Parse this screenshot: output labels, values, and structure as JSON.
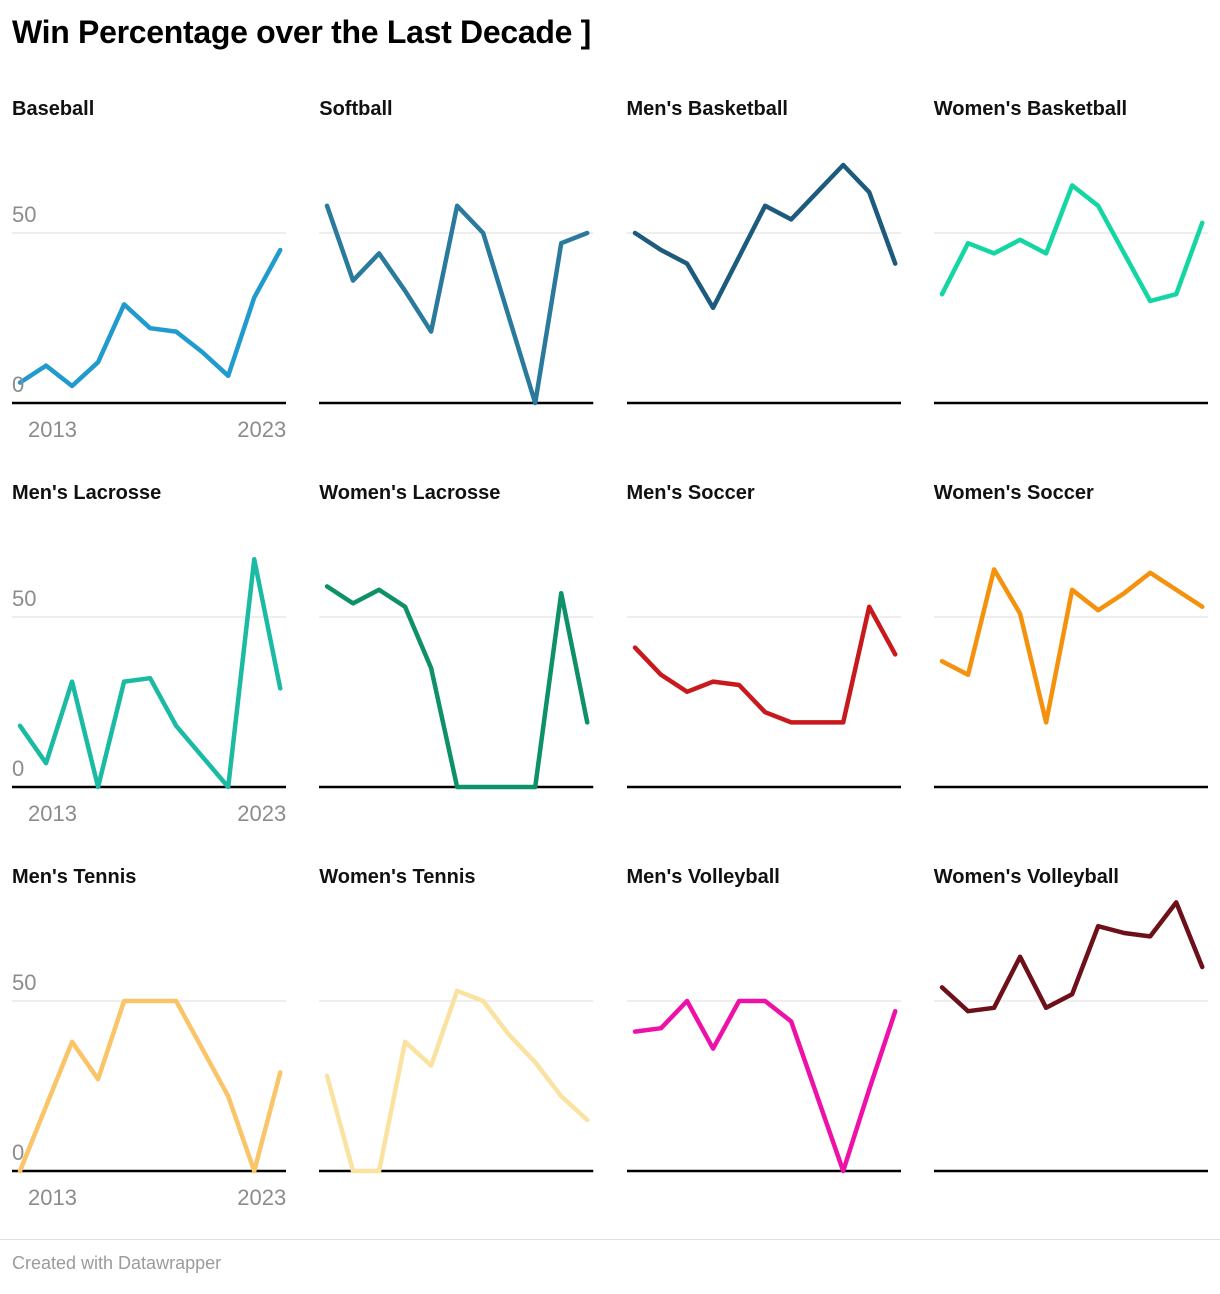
{
  "header": {
    "title": "Win Percentage over the Last Decade ]"
  },
  "footer": {
    "credit": "Created with Datawrapper"
  },
  "chart_data": {
    "type": "line",
    "layout": "small-multiples-4x3",
    "x": [
      2013,
      2014,
      2015,
      2016,
      2017,
      2018,
      2019,
      2020,
      2021,
      2022,
      2023
    ],
    "x_tick_labels": [
      "2013",
      "2023"
    ],
    "y_tick_labels": [
      "50",
      "0"
    ],
    "ylim": [
      0,
      85
    ],
    "gridline_value": 50,
    "grid_on": true,
    "legend": "none",
    "ylabel": "Win Percentage",
    "series": [
      {
        "title": "Baseball",
        "color": "#219bce",
        "values": [
          6,
          11,
          5,
          12,
          29,
          22,
          21,
          15,
          8,
          31,
          45
        ]
      },
      {
        "title": "Softball",
        "color": "#2a7a9e",
        "values": [
          58,
          36,
          44,
          33,
          21,
          58,
          50,
          25,
          0,
          47,
          50
        ]
      },
      {
        "title": "Men's Basketball",
        "color": "#1c5b7d",
        "values": [
          50,
          45,
          41,
          28,
          43,
          58,
          54,
          62,
          70,
          62,
          41
        ]
      },
      {
        "title": "Women's Basketball",
        "color": "#14d6a2",
        "values": [
          32,
          47,
          44,
          48,
          44,
          64,
          58,
          44,
          30,
          32,
          53
        ]
      },
      {
        "title": "Men's Lacrosse",
        "color": "#1bbaa2",
        "values": [
          18,
          7,
          31,
          0,
          31,
          32,
          18,
          9,
          0,
          67,
          29
        ]
      },
      {
        "title": "Women's Lacrosse",
        "color": "#0e9168",
        "values": [
          59,
          54,
          58,
          53,
          35,
          0,
          0,
          0,
          0,
          57,
          19
        ]
      },
      {
        "title": "Men's Soccer",
        "color": "#c8191d",
        "values": [
          41,
          33,
          28,
          31,
          30,
          22,
          19,
          19,
          19,
          53,
          39
        ]
      },
      {
        "title": "Women's Soccer",
        "color": "#f5920d",
        "values": [
          37,
          33,
          64,
          51,
          19,
          58,
          52,
          57,
          63,
          58,
          53
        ]
      },
      {
        "title": "Men's Tennis",
        "color": "#fac468",
        "values": [
          0,
          19,
          38,
          27,
          50,
          50,
          50,
          36,
          22,
          0,
          29
        ]
      },
      {
        "title": "Women's Tennis",
        "color": "#fae2a0",
        "values": [
          28,
          0,
          0,
          38,
          31,
          53,
          50,
          40,
          32,
          22,
          15
        ]
      },
      {
        "title": "Men's Volleyball",
        "color": "#ee11a8",
        "values": [
          41,
          42,
          50,
          36,
          50,
          50,
          44,
          22,
          0,
          24,
          47
        ]
      },
      {
        "title": "Women's Volleyball",
        "color": "#6e1019",
        "values": [
          54,
          47,
          48,
          63,
          48,
          52,
          72,
          70,
          69,
          79,
          60
        ]
      }
    ]
  }
}
